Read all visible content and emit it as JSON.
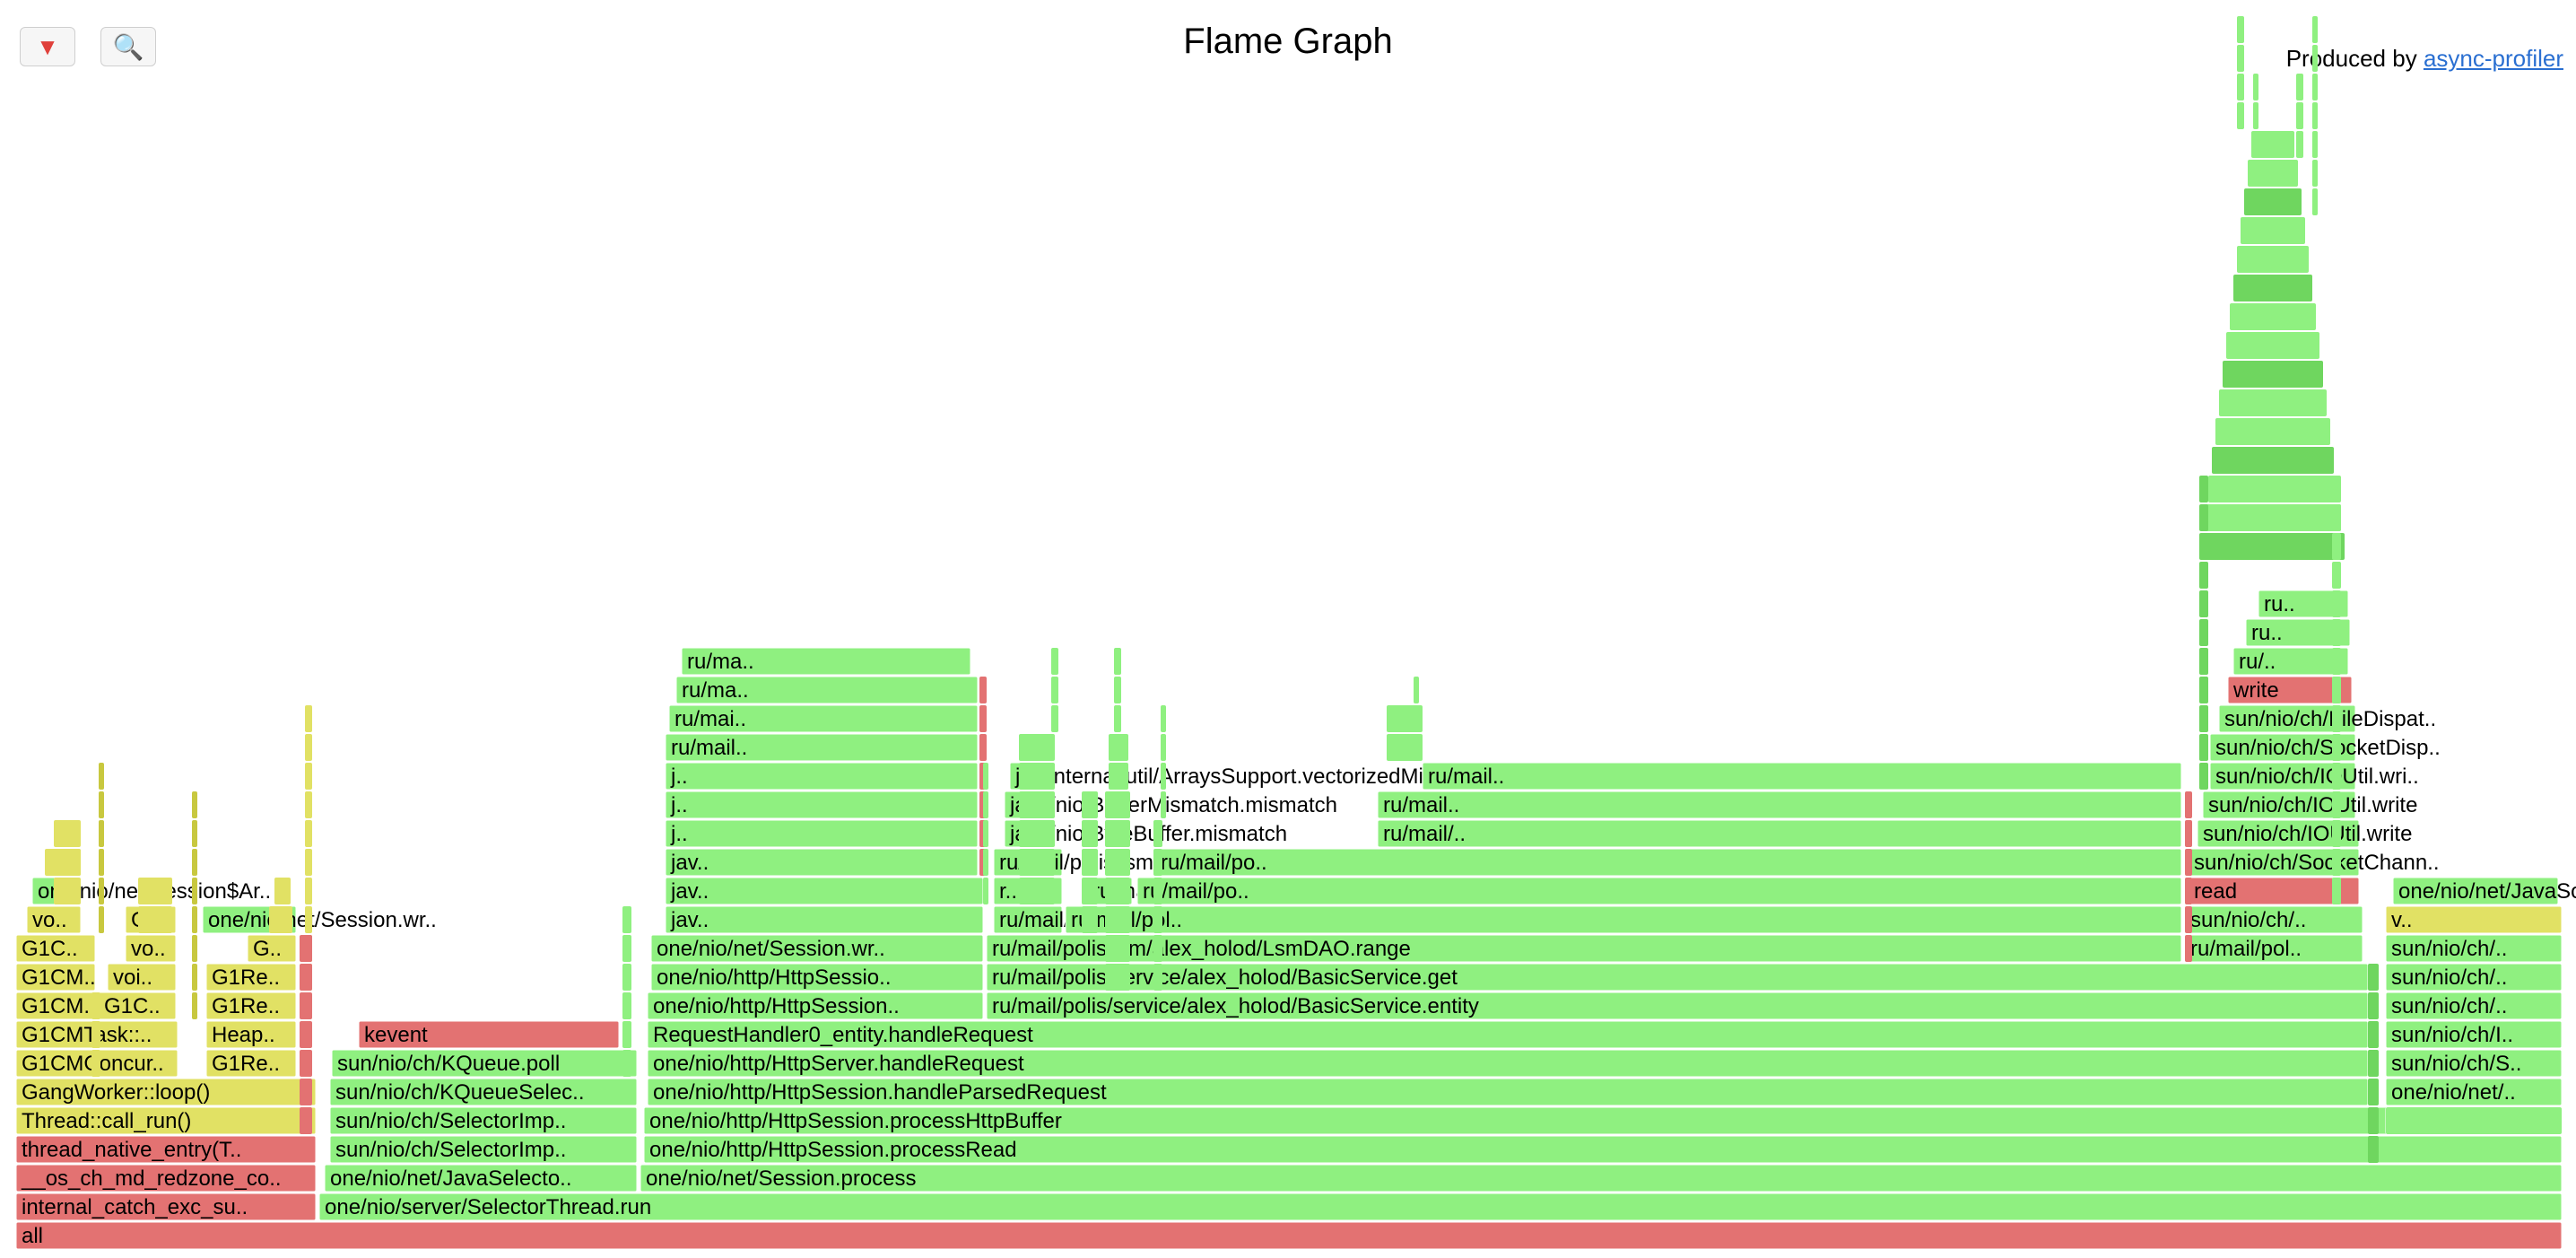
{
  "title": "Flame Graph",
  "toolbar": {
    "reverse_icon": "reverse-icon",
    "search_icon": "search-icon"
  },
  "credit": {
    "prefix": "Produced by",
    "link": "async-profiler"
  },
  "colors": {
    "red": "#e37272",
    "green": "#8ff080",
    "green_dark": "#6fd65f",
    "yellow": "#e1e164",
    "yellow_dark": "#c8c83f",
    "olive": "#d7d751"
  },
  "frames": [
    {
      "label": "all",
      "c": "red"
    },
    {
      "label": "internal_catch_exc_su..",
      "c": "red"
    },
    {
      "label": "one/nio/server/SelectorThread.run",
      "c": "green"
    },
    {
      "label": "__os_ch_md_redzone_co..",
      "c": "red"
    },
    {
      "label": "one/nio/net/JavaSelecto..",
      "c": "green"
    },
    {
      "label": "one/nio/net/Session.process",
      "c": "green"
    },
    {
      "label": "thread_native_entry(T..",
      "c": "red"
    },
    {
      "label": "sun/nio/ch/SelectorImp..",
      "c": "green"
    },
    {
      "label": "one/nio/http/HttpSession.processRead",
      "c": "green"
    },
    {
      "label": "Thread::call_run()",
      "c": "yellow"
    },
    {
      "label": "sun/nio/ch/SelectorImp..",
      "c": "green"
    },
    {
      "label": "one/nio/http/HttpSession.processHttpBuffer",
      "c": "green"
    },
    {
      "label": "one/nio/net/..",
      "c": "green"
    },
    {
      "label": "GangWorker::loop()",
      "c": "yellow"
    },
    {
      "label": "sun/nio/ch/KQueueSelec..",
      "c": "green"
    },
    {
      "label": "one/nio/http/HttpSession.handleParsedRequest",
      "c": "green"
    },
    {
      "label": "one/nio/net/..",
      "c": "green"
    },
    {
      "label": "G1CMConcur..",
      "c": "yellow"
    },
    {
      "label": "G1Re..",
      "c": "yellow"
    },
    {
      "label": "sun/nio/ch/KQueue.poll",
      "c": "green"
    },
    {
      "label": "one/nio/http/HttpServer.handleRequest",
      "c": "green"
    },
    {
      "label": "sun/nio/ch/S..",
      "c": "green"
    },
    {
      "label": "G1CMTask::..",
      "c": "yellow"
    },
    {
      "label": "Heap..",
      "c": "yellow"
    },
    {
      "label": "kevent",
      "c": "red"
    },
    {
      "label": "RequestHandler0_entity.handleRequest",
      "c": "green"
    },
    {
      "label": "sun/nio/ch/I..",
      "c": "green"
    },
    {
      "label": "G1CM..",
      "c": "yellow"
    },
    {
      "label": "G1C..",
      "c": "yellow"
    },
    {
      "label": "G1Re..",
      "c": "yellow"
    },
    {
      "label": "one/nio/http/HttpSession..",
      "c": "green"
    },
    {
      "label": "ru/mail/polis/service/alex_holod/BasicService.entity",
      "c": "green"
    },
    {
      "label": "sun/nio/ch/..",
      "c": "green"
    },
    {
      "label": "G1CM..",
      "c": "yellow"
    },
    {
      "label": "voi..",
      "c": "yellow"
    },
    {
      "label": "G1Re..",
      "c": "yellow"
    },
    {
      "label": "one/nio/http/HttpSessio..",
      "c": "green"
    },
    {
      "label": "ru/mail/polis/service/alex_holod/BasicService.get",
      "c": "green"
    },
    {
      "label": "sun/nio/ch/..",
      "c": "green"
    },
    {
      "label": "G1C..",
      "c": "yellow"
    },
    {
      "label": "vo..",
      "c": "yellow"
    },
    {
      "label": "G..",
      "c": "yellow"
    },
    {
      "label": "one/nio/net/Session.wr..",
      "c": "green"
    },
    {
      "label": "ru/mail/polis/lsm/alex_holod/LsmDAO.range",
      "c": "green"
    },
    {
      "label": "ru/mail/pol..",
      "c": "green"
    },
    {
      "label": "sun/nio/ch/..",
      "c": "green"
    },
    {
      "label": "vo..",
      "c": "yellow"
    },
    {
      "label": "G..",
      "c": "yellow"
    },
    {
      "label": "one/nio/net/Session.wr..",
      "c": "green"
    },
    {
      "label": "jav..",
      "c": "green"
    },
    {
      "label": "ru/mail/polis/lsm/alex_holod/LsmDAO.sstableRanges",
      "c": "green"
    },
    {
      "label": "ru/mail/pol..",
      "c": "green"
    },
    {
      "label": "sun/nio/ch/..",
      "c": "green"
    },
    {
      "label": "v..",
      "c": "yellow"
    },
    {
      "label": "one/nio/net/Session$Ar..",
      "c": "green"
    },
    {
      "label": "jav..",
      "c": "green"
    },
    {
      "label": "r..",
      "c": "green"
    },
    {
      "label": "ru/mail/polis/lsm/alex_holod/SSTable.range",
      "c": "green"
    },
    {
      "label": "ru/mail/po..",
      "c": "green"
    },
    {
      "label": "read",
      "c": "red"
    },
    {
      "label": "one/nio/net/JavaSocket..",
      "c": "green"
    },
    {
      "label": "jav..",
      "c": "green"
    },
    {
      "label": "ru/mail/polis/lsm/alex_holod/SSTable.offset",
      "c": "green"
    },
    {
      "label": "ru/mail/po..",
      "c": "green"
    },
    {
      "label": "sun/nio/ch/SocketChann..",
      "c": "green"
    },
    {
      "label": "j..",
      "c": "green"
    },
    {
      "label": "java/nio/ByteBuffer.mismatch",
      "c": "green"
    },
    {
      "label": "ru/mail/..",
      "c": "green"
    },
    {
      "label": "sun/nio/ch/IOUtil.write",
      "c": "green"
    },
    {
      "label": "j..",
      "c": "green"
    },
    {
      "label": "java/nio/BufferMismatch.mismatch",
      "c": "green"
    },
    {
      "label": "ru/mail..",
      "c": "green"
    },
    {
      "label": "sun/nio/ch/IOUtil.write",
      "c": "green"
    },
    {
      "label": "j..",
      "c": "green"
    },
    {
      "label": "jdk/internal/util/ArraysSupport.vectorizedMismatch",
      "c": "green"
    },
    {
      "label": "ru/mail..",
      "c": "green"
    },
    {
      "label": "sun/nio/ch/IOUtil.wri..",
      "c": "green"
    },
    {
      "label": "ru/mail..",
      "c": "green"
    },
    {
      "label": "sun/nio/ch/SocketDisp..",
      "c": "green"
    },
    {
      "label": "ru/mai..",
      "c": "green"
    },
    {
      "label": "sun/nio/ch/FileDispat..",
      "c": "green"
    },
    {
      "label": "ru/ma..",
      "c": "green"
    },
    {
      "label": "write",
      "c": "red"
    },
    {
      "label": "ru/ma..",
      "c": "green"
    },
    {
      "label": "ru/..",
      "c": "green"
    },
    {
      "label": "ru..",
      "c": "green"
    },
    {
      "label": "ru..",
      "c": "green"
    }
  ]
}
